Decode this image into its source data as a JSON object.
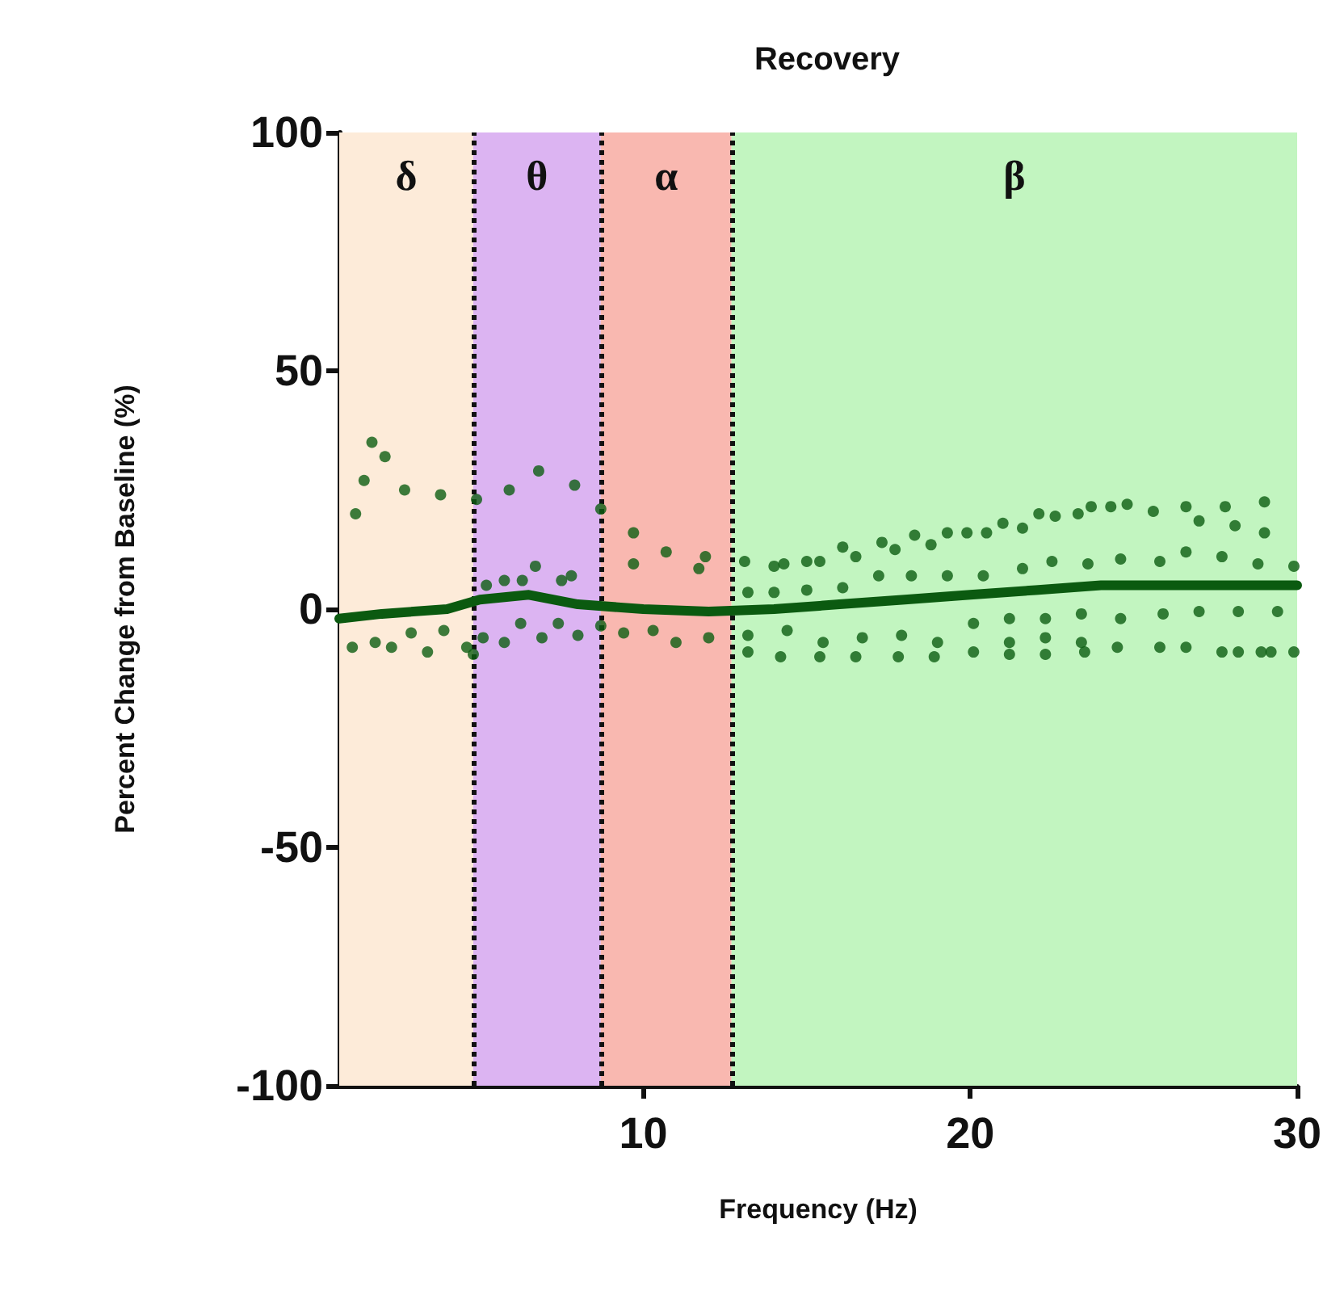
{
  "chart_data": {
    "type": "scatter",
    "title": "Recovery",
    "xlabel": "Frequency (Hz)",
    "ylabel": "Percent Change from Baseline (%)",
    "xlim": [
      0.7,
      30
    ],
    "xticks": [
      10,
      20,
      30
    ],
    "ylim": [
      -100,
      100
    ],
    "yticks": [
      -100,
      -50,
      0,
      50,
      100
    ],
    "grid": false,
    "marker": "circle",
    "series": [
      {
        "color": "#0d5e12",
        "x": [
          1.7,
          2.1,
          1.46,
          2.7,
          3.8,
          1.2,
          5.9,
          6.8,
          7.9,
          4.9,
          8.7,
          9.7,
          10.7,
          9.7,
          11.9,
          11.7,
          6.7,
          5.75,
          6.3,
          5.2,
          7.5,
          7.8,
          1.1,
          1.8,
          2.3,
          3.4,
          4.6,
          4.8,
          5.1,
          5.75,
          6.25,
          6.9,
          7.4,
          8.0,
          2.9,
          3.9,
          8.7,
          9.4,
          10.3,
          11.0,
          12.0,
          13.1,
          14.0,
          14.3,
          15.0,
          15.4,
          16.1,
          16.5,
          17.3,
          17.7,
          18.3,
          18.8,
          19.3,
          19.9,
          20.5,
          21.0,
          17.2,
          18.2,
          19.3,
          20.4,
          13.2,
          14.0,
          15.0,
          16.1,
          13.2,
          13.2,
          14.2,
          14.4,
          15.4,
          15.5,
          16.5,
          16.7,
          17.8,
          17.9,
          18.9,
          19.0,
          20.1,
          20.1,
          21.2,
          21.6,
          22.1,
          22.6,
          23.3,
          23.7,
          24.3,
          24.8,
          25.6,
          26.6,
          27.0,
          27.8,
          28.1,
          29.0,
          29.0,
          21.6,
          22.5,
          23.6,
          24.6,
          25.8,
          26.6,
          27.7,
          28.8,
          29.9,
          21.2,
          22.3,
          23.4,
          24.6,
          25.9,
          27.0,
          28.2,
          29.4,
          21.2,
          22.3,
          22.3,
          23.4,
          23.5,
          24.5,
          25.8,
          26.6,
          27.7,
          28.2,
          28.9,
          29.2,
          29.9
        ],
        "values": [
          35,
          32,
          27,
          25,
          24,
          20,
          25,
          29,
          26,
          23,
          21,
          16,
          12,
          9.5,
          11,
          8.5,
          9,
          6,
          6,
          5,
          6,
          7,
          -8,
          -7,
          -8,
          -9,
          -8,
          -9.5,
          -6,
          -7,
          -3,
          -6,
          -3,
          -5.5,
          -5,
          -4.5,
          -3.5,
          -5,
          -4.5,
          -7,
          -6,
          10,
          9,
          9.5,
          10,
          10,
          13,
          11,
          14,
          12.5,
          15.5,
          13.5,
          16,
          16,
          16,
          18,
          7,
          7,
          7,
          7,
          3.5,
          3.5,
          4,
          4.5,
          -5.5,
          -9,
          -10,
          -4.5,
          -10,
          -7,
          -10,
          -6,
          -10,
          -5.5,
          -10,
          -7,
          -9,
          -3,
          -9.5,
          17,
          20,
          19.5,
          20,
          21.5,
          21.5,
          22,
          20.5,
          21.5,
          18.5,
          21.5,
          17.5,
          22.5,
          16,
          8.5,
          10,
          9.5,
          10.5,
          10,
          12,
          11,
          9.5,
          9,
          -2,
          -2,
          -1,
          -2,
          -1,
          -0.5,
          -0.5,
          -0.5,
          -7,
          -6,
          -9.5,
          -7,
          -9,
          -8,
          -8,
          -8,
          -9,
          -9,
          -9,
          -9,
          -9
        ]
      },
      {
        "type": "line",
        "color": "#0b5a10",
        "marker": "none",
        "x": [
          0.7,
          2,
          4,
          5,
          6.5,
          8,
          10,
          12,
          14,
          16,
          18,
          20,
          22,
          24,
          26,
          28,
          30
        ],
        "values": [
          -2,
          -1,
          0,
          2,
          3,
          1,
          0,
          -0.5,
          0,
          1,
          2,
          3,
          4,
          5,
          5,
          5,
          5
        ]
      }
    ],
    "bands": [
      {
        "axis": "x",
        "from": 0.7,
        "to": 4.8,
        "label": "δ",
        "color": "#fdebd9"
      },
      {
        "axis": "x",
        "from": 4.8,
        "to": 8.7,
        "label": "θ",
        "color": "#dcb4f2"
      },
      {
        "axis": "x",
        "from": 8.7,
        "to": 12.7,
        "label": "α",
        "color": "#f9b8b0"
      },
      {
        "axis": "x",
        "from": 12.7,
        "to": 30,
        "label": "β",
        "color": "#c2f5c0"
      }
    ],
    "ref_lines": [
      {
        "axis": "x",
        "value": 4.8,
        "line_style": "dotted",
        "color": "#111111"
      },
      {
        "axis": "x",
        "value": 8.7,
        "line_style": "dotted",
        "color": "#111111"
      },
      {
        "axis": "x",
        "value": 12.7,
        "line_style": "dotted",
        "color": "#111111"
      }
    ]
  }
}
